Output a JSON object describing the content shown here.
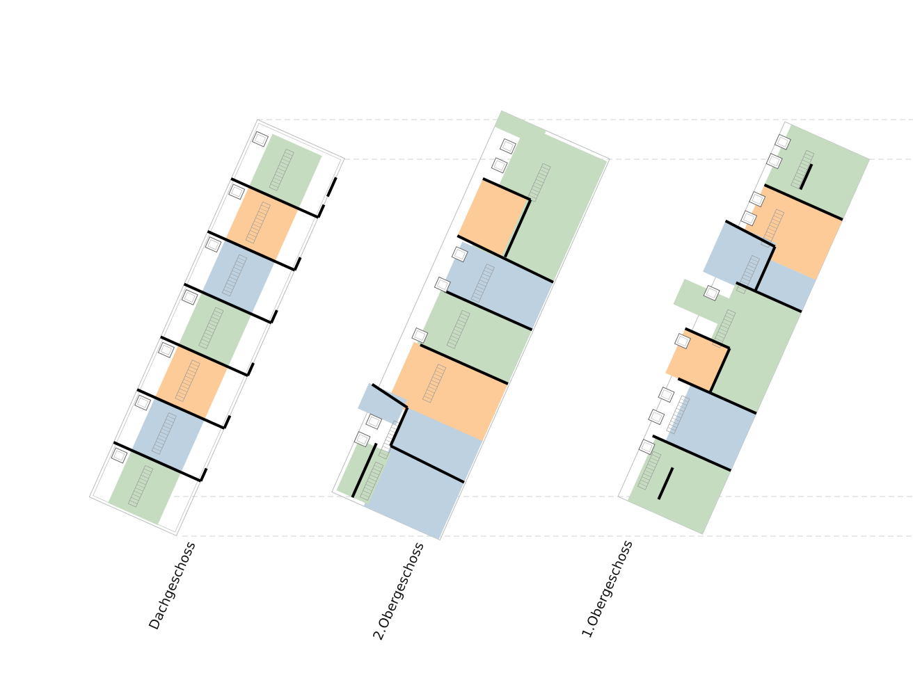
{
  "colors": {
    "unit_a": "#c5dcc0",
    "unit_b": "#fdcb97",
    "unit_c": "#bdd1e0",
    "wall": "#000000",
    "outline": "#b8bcbc",
    "guide": "#cfd3d3"
  },
  "plans": [
    {
      "label": "Dachgeschoss"
    },
    {
      "label": "2.Obergeschoss"
    },
    {
      "label": "1.Obergeschoss"
    }
  ]
}
